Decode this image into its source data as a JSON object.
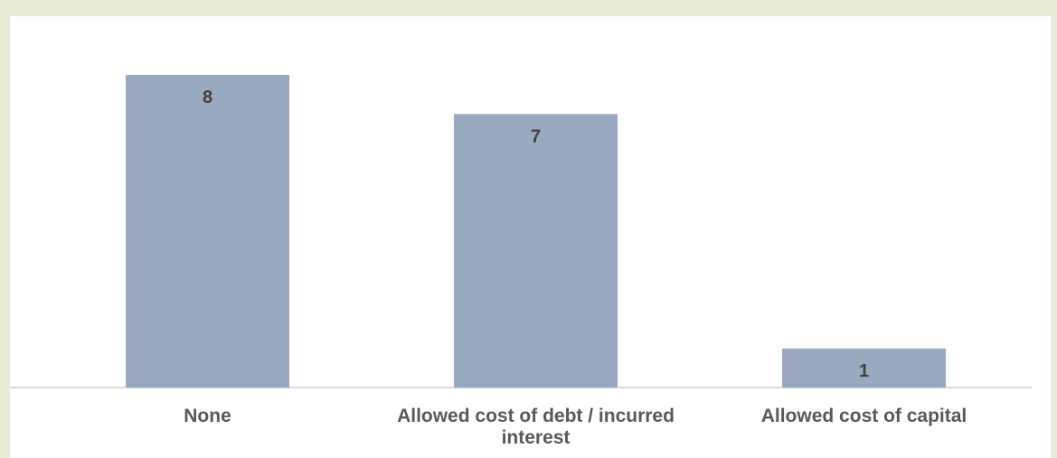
{
  "colors": {
    "background": "#e7edd9",
    "panel": "#ffffff",
    "bar": "#9aa9c0",
    "axis": "#d9d9d9",
    "category_label": "#595959",
    "data_label": "#404040"
  },
  "header": {
    "title_visible_text": ""
  },
  "chart_data": {
    "type": "bar",
    "title": "",
    "xlabel": "",
    "ylabel": "",
    "categories": [
      "None",
      "Allowed cost of debt / incurred interest",
      "Allowed cost of capital"
    ],
    "category_lines": [
      [
        "None"
      ],
      [
        "Allowed cost of debt / incurred",
        "interest"
      ],
      [
        "Allowed cost of capital"
      ]
    ],
    "values": [
      8,
      7,
      1
    ],
    "ylim": [
      0,
      8
    ],
    "grid": false,
    "legend": "none",
    "data_labels": true
  }
}
